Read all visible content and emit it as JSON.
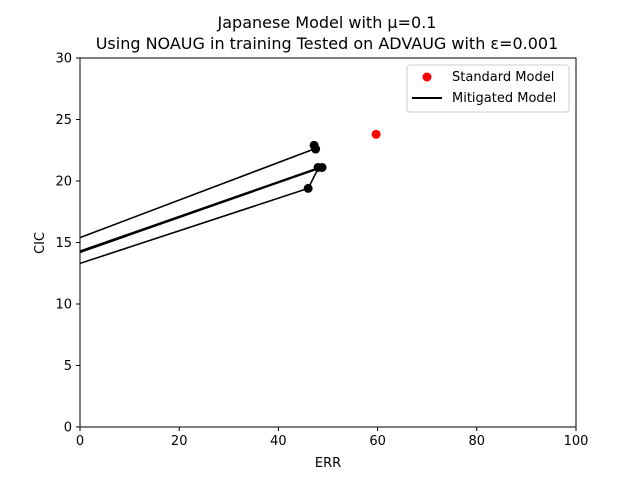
{
  "chart_data": {
    "type": "scatter",
    "title_line1": "Japanese Model with μ=0.1",
    "title_line2": "Using NOAUG in training Tested on ADVAUG with ε=0.001",
    "xlabel": "ERR",
    "ylabel": "CIC",
    "xlim": [
      0,
      100
    ],
    "ylim": [
      0,
      30
    ],
    "xticks": [
      0,
      20,
      40,
      60,
      80,
      100
    ],
    "yticks": [
      0,
      5,
      10,
      15,
      20,
      25,
      30
    ],
    "grid": false,
    "legend_position": "top-right",
    "series": [
      {
        "name": "Standard Model",
        "color": "#ff0000",
        "marker": "circle",
        "points": [
          {
            "x": 59.7,
            "y": 23.8
          }
        ]
      },
      {
        "name": "Mitigated Model",
        "color": "#000000",
        "marker": "line",
        "lines": [
          {
            "x": [
              0,
              47.2,
              47.5
            ],
            "y": [
              15.4,
              22.6,
              22.9
            ]
          },
          {
            "x": [
              0,
              48.3,
              48.8
            ],
            "y": [
              14.3,
              21.1,
              21.1
            ]
          },
          {
            "x": [
              0,
              48.0,
              48.5
            ],
            "y": [
              14.2,
              21.0,
              21.1
            ]
          },
          {
            "x": [
              0,
              46.0,
              48.0
            ],
            "y": [
              13.3,
              19.4,
              21.0
            ]
          }
        ],
        "points": [
          {
            "x": 47.2,
            "y": 22.9
          },
          {
            "x": 47.5,
            "y": 22.6
          },
          {
            "x": 48.0,
            "y": 21.1
          },
          {
            "x": 48.8,
            "y": 21.1
          },
          {
            "x": 46.0,
            "y": 19.4
          }
        ]
      }
    ]
  }
}
